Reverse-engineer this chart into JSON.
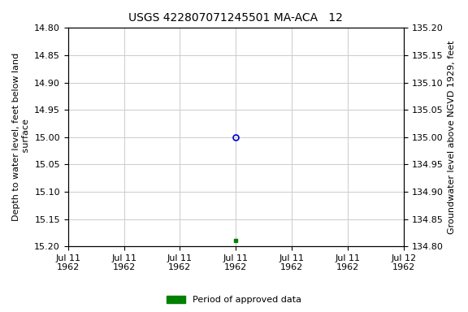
{
  "title": "USGS 422807071245501 MA-ACA   12",
  "left_ylabel": "Depth to water level, feet below land\n surface",
  "right_ylabel": "Groundwater level above NGVD 1929, feet",
  "ylim_left_top": 14.8,
  "ylim_left_bottom": 15.2,
  "ylim_right_top": 135.2,
  "ylim_right_bottom": 134.8,
  "yticks_left": [
    14.8,
    14.85,
    14.9,
    14.95,
    15.0,
    15.05,
    15.1,
    15.15,
    15.2
  ],
  "yticks_right": [
    135.2,
    135.15,
    135.1,
    135.05,
    135.0,
    134.95,
    134.9,
    134.85,
    134.8
  ],
  "point_open_x": 12.0,
  "point_open_value": 15.0,
  "point_filled_x": 12.0,
  "point_filled_value": 15.19,
  "open_color": "#0000cc",
  "filled_color": "#008000",
  "legend_label": "Period of approved data",
  "legend_color": "#008000",
  "bg_color": "#ffffff",
  "grid_color": "#cccccc",
  "title_fontsize": 10,
  "label_fontsize": 8,
  "tick_fontsize": 8,
  "xtick_positions": [
    0,
    4,
    8,
    12,
    16,
    20,
    24
  ],
  "xtick_labels": [
    "Jul 11\n1962",
    "Jul 11\n1962",
    "Jul 11\n1962",
    "Jul 11\n1962",
    "Jul 11\n1962",
    "Jul 11\n1962",
    "Jul 12\n1962"
  ],
  "xlim": [
    0,
    24
  ]
}
